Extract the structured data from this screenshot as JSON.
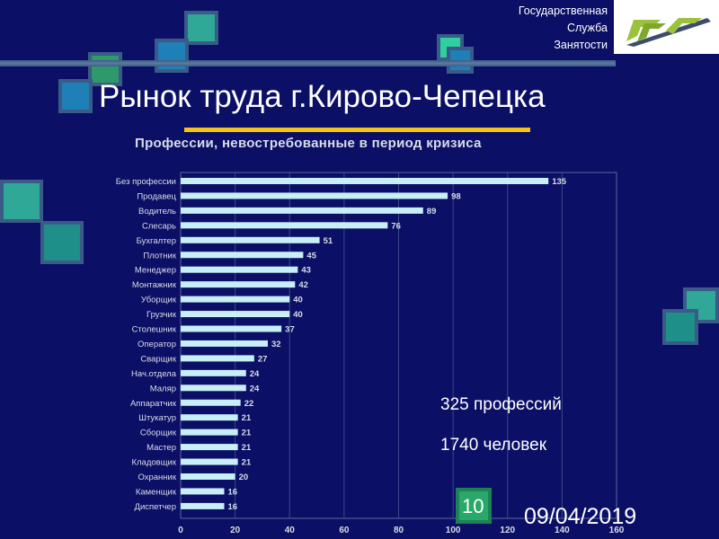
{
  "org": {
    "lines": [
      "Государственная",
      "Служба",
      "Занятости"
    ]
  },
  "title": "Рынок труда г.Кирово-Чепецка",
  "summary": {
    "professions": "325 профессий",
    "people": "1740 человек"
  },
  "slide_number": "10",
  "date": "09/04/2019",
  "colors": {
    "background": "#0b0f66",
    "bar": "#c8eef7",
    "title_underline": "#f4c418",
    "deco_teal": "#2fa898",
    "deco_steel": "#3a5b87"
  },
  "icons": {
    "logo": "ministry-logo-icon"
  },
  "chart_data": {
    "type": "bar",
    "orientation": "horizontal",
    "title": "Профессии, невостребованные в период кризиса",
    "categories": [
      "Без профессии",
      "Продавец",
      "Водитель",
      "Слесарь",
      "Бухгалтер",
      "Плотник",
      "Менеджер",
      "Монтажник",
      "Уборщик",
      "Грузчик",
      "Столешник",
      "Оператор",
      "Сварщик",
      "Нач.отдела",
      "Маляр",
      "Аппаратчик",
      "Штукатур",
      "Сборщик",
      "Мастер",
      "Кладовщик",
      "Охранник",
      "Каменщик",
      "Диспетчер"
    ],
    "values": [
      135,
      98,
      89,
      76,
      51,
      45,
      43,
      42,
      40,
      40,
      37,
      32,
      27,
      24,
      24,
      22,
      21,
      21,
      21,
      21,
      20,
      16,
      16
    ],
    "value_labels": [
      "135",
      "98",
      "89",
      "76",
      "51",
      "45",
      "43",
      "42",
      "40",
      "40",
      "37",
      "32",
      "27",
      "24",
      "24",
      "22",
      "21",
      "21",
      "21",
      "21",
      "20",
      "16",
      "16"
    ],
    "xlim": [
      0,
      160
    ],
    "x_ticks": [
      "0",
      "20",
      "40",
      "60",
      "80",
      "100",
      "120",
      "140",
      "160"
    ],
    "grid": true,
    "legend": "none"
  }
}
